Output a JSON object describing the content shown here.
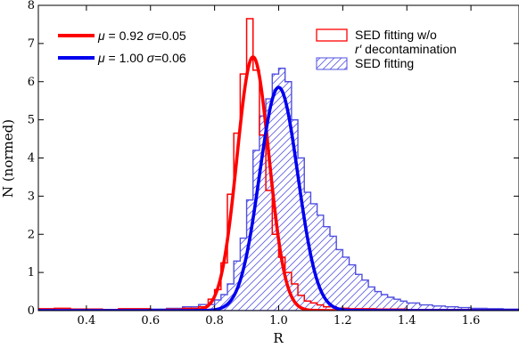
{
  "chart_data": {
    "type": "histogram",
    "xlabel": "R",
    "ylabel": "N (normed)",
    "xlim": [
      0.25,
      1.75
    ],
    "ylim": [
      0,
      8
    ],
    "xticks": [
      0.4,
      0.6,
      0.8,
      1.0,
      1.2,
      1.4,
      1.6
    ],
    "xtick_labels": [
      "0.4",
      "0.6",
      "0.8",
      "1.0",
      "1.2",
      "1.4",
      "1.6"
    ],
    "yticks": [
      0,
      1,
      2,
      3,
      4,
      5,
      6,
      7,
      8
    ],
    "ytick_labels": [
      "0",
      "1",
      "2",
      "3",
      "4",
      "5",
      "6",
      "7",
      "8"
    ],
    "grid": false,
    "histograms": [
      {
        "name": "SED fitting w/o r′ decontamination",
        "style": "step",
        "color": "#ff0000",
        "bin_edges": [
          0.25,
          0.3,
          0.35,
          0.4,
          0.45,
          0.5,
          0.55,
          0.6,
          0.65,
          0.7,
          0.75,
          0.78,
          0.8,
          0.82,
          0.84,
          0.86,
          0.88,
          0.9,
          0.92,
          0.94,
          0.96,
          0.98,
          1.0,
          1.02,
          1.04,
          1.06,
          1.08,
          1.1,
          1.12,
          1.14,
          1.18,
          1.22,
          1.3,
          1.4,
          1.5,
          1.6,
          1.7,
          1.75
        ],
        "counts": [
          0.05,
          0.06,
          0.04,
          0.04,
          0.03,
          0.05,
          0.05,
          0.02,
          0.04,
          0.06,
          0.1,
          0.3,
          0.55,
          1.25,
          3.05,
          4.65,
          6.2,
          7.65,
          6.3,
          4.6,
          3.15,
          2.0,
          1.4,
          1.0,
          0.7,
          0.4,
          0.25,
          0.2,
          0.15,
          0.1,
          0.06,
          0.05,
          0.04,
          0.03,
          0.03,
          0.02,
          0.02
        ]
      },
      {
        "name": "SED fitting",
        "style": "hatched",
        "color": "#5050e0",
        "bin_edges": [
          0.5,
          0.55,
          0.6,
          0.65,
          0.7,
          0.75,
          0.8,
          0.82,
          0.84,
          0.86,
          0.88,
          0.9,
          0.92,
          0.94,
          0.96,
          0.98,
          1.0,
          1.02,
          1.04,
          1.06,
          1.08,
          1.1,
          1.12,
          1.14,
          1.16,
          1.18,
          1.2,
          1.22,
          1.24,
          1.26,
          1.28,
          1.3,
          1.32,
          1.34,
          1.36,
          1.38,
          1.4,
          1.44,
          1.48,
          1.52,
          1.56,
          1.6,
          1.65,
          1.7,
          1.75
        ],
        "counts": [
          0.02,
          0.03,
          0.04,
          0.06,
          0.1,
          0.16,
          0.28,
          0.42,
          0.7,
          1.3,
          1.9,
          2.9,
          4.2,
          5.1,
          5.55,
          6.2,
          6.35,
          6.0,
          5.0,
          4.0,
          3.1,
          2.8,
          2.5,
          2.2,
          1.95,
          1.6,
          1.4,
          1.2,
          0.95,
          0.8,
          0.62,
          0.5,
          0.42,
          0.35,
          0.3,
          0.25,
          0.2,
          0.15,
          0.12,
          0.1,
          0.08,
          0.06,
          0.05,
          0.04
        ]
      }
    ],
    "gaussian_fits": [
      {
        "label": "μ = 0.92 σ=0.05",
        "mu": 0.92,
        "sigma": 0.05,
        "peak": 6.65,
        "color": "#ff0000"
      },
      {
        "label": "μ = 1.00 σ=0.06",
        "mu": 1.0,
        "sigma": 0.06,
        "peak": 5.85,
        "color": "#0000ee"
      }
    ],
    "legend_left": {
      "placement": "top-left",
      "entries": [
        {
          "mu_symbol": "μ",
          "mu_text": " = 0.92 ",
          "sigma_symbol": "σ",
          "sigma_text": "=0.05",
          "color": "#ff0000"
        },
        {
          "mu_symbol": "μ",
          "mu_text": " = 1.00 ",
          "sigma_symbol": "σ",
          "sigma_text": "=0.06",
          "color": "#0000ee"
        }
      ]
    },
    "legend_right": {
      "placement": "top-right",
      "entries": [
        {
          "line1": "SED fitting w/o",
          "line2_italic": "r′",
          "line2_rest": " decontamination",
          "color": "#ff0000",
          "style": "outline"
        },
        {
          "line1": "SED fitting",
          "color": "#5050e0",
          "style": "hatched"
        }
      ]
    }
  }
}
